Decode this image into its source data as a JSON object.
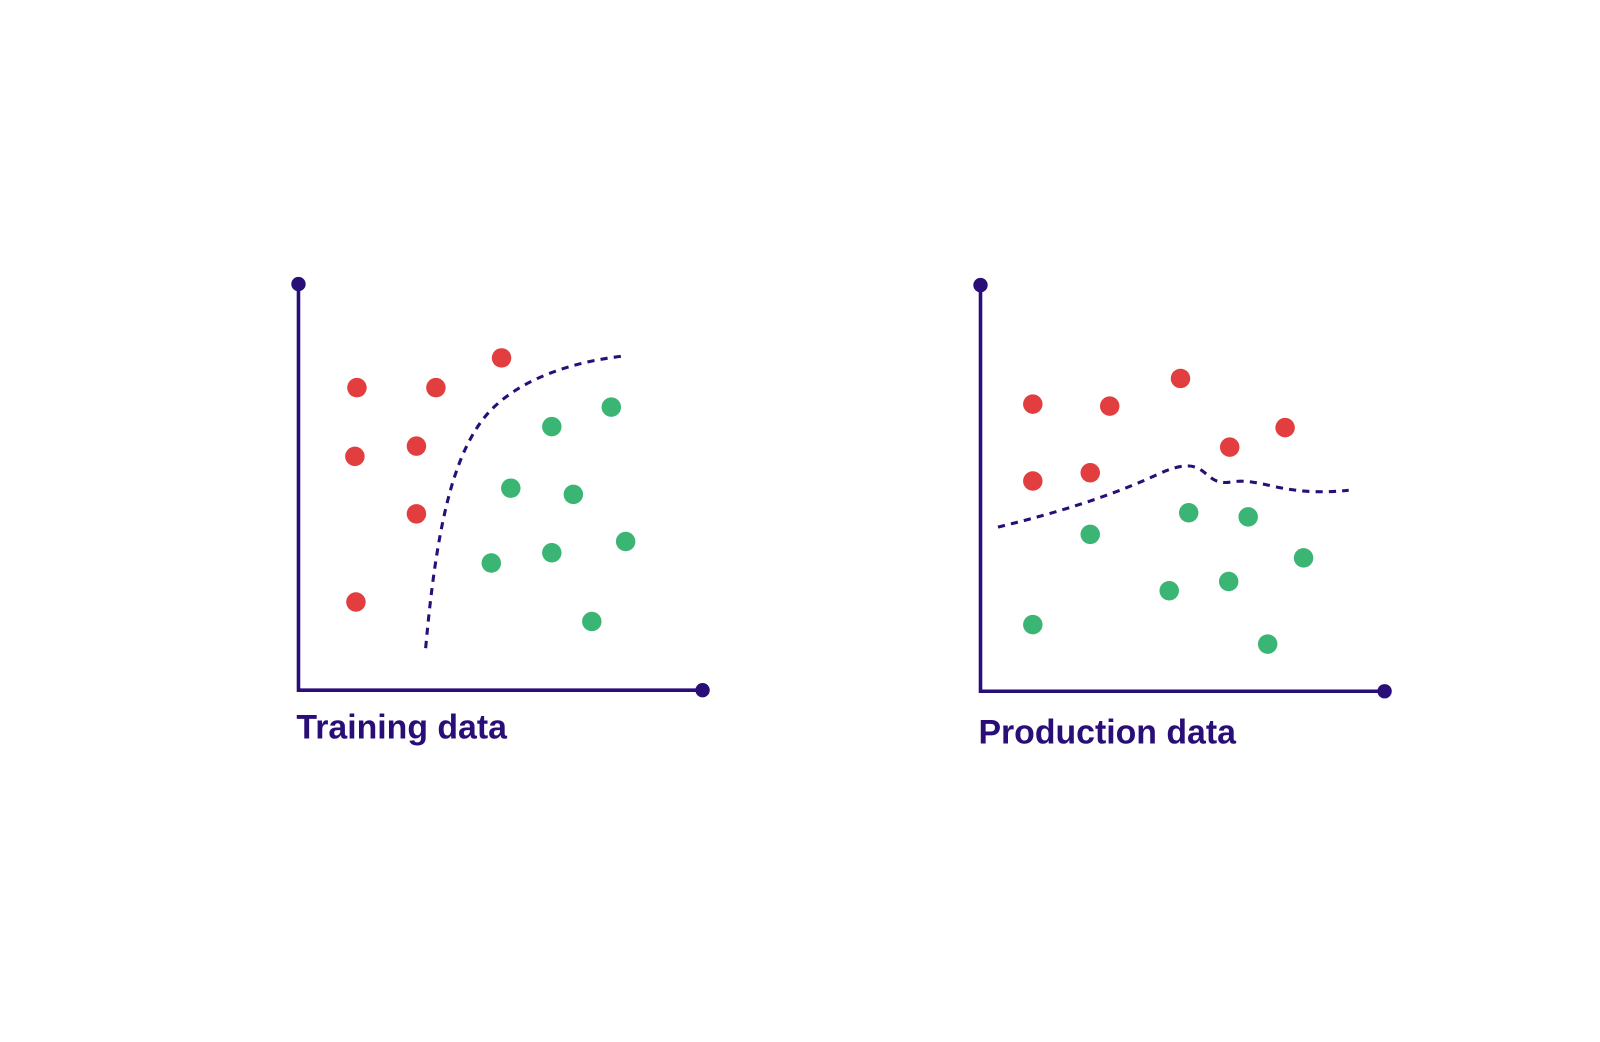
{
  "panels": [
    {
      "label": "Training data"
    },
    {
      "label": "Production data"
    }
  ]
}
